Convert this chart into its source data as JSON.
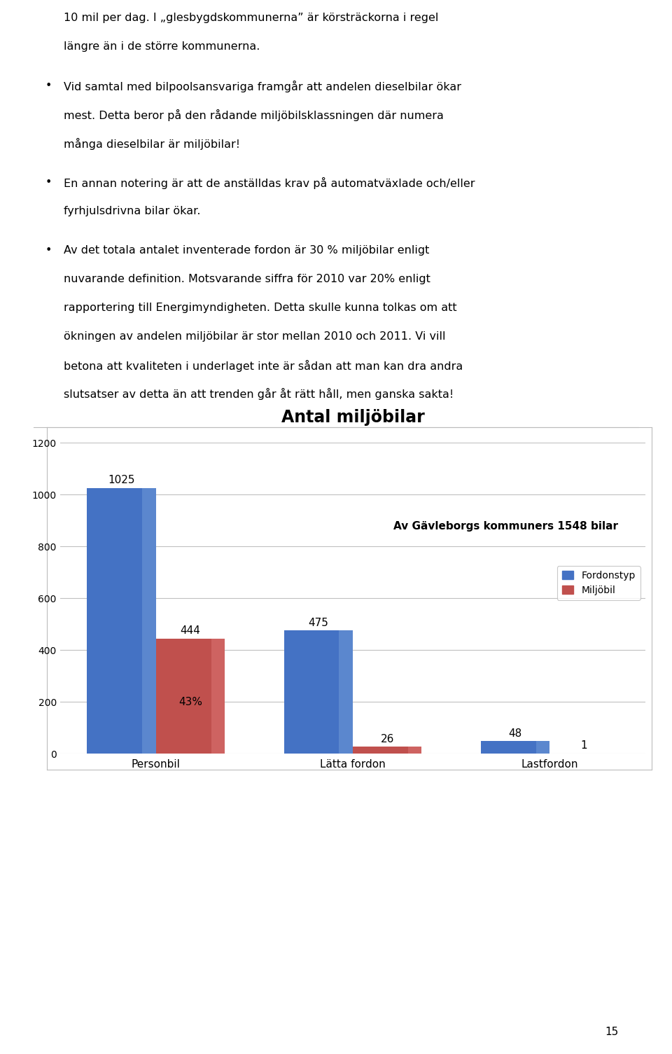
{
  "title": "Antal miljöbilar",
  "categories": [
    "Personbil",
    "Lätta fordon",
    "Lastfordon"
  ],
  "fordonstyp": [
    1025,
    475,
    48
  ],
  "miljobil": [
    444,
    26,
    1
  ],
  "bar_color_blue": "#4472C4",
  "bar_color_red": "#C0504D",
  "bar_width": 0.35,
  "ylim": [
    0,
    1200
  ],
  "yticks": [
    0,
    200,
    400,
    600,
    800,
    1000,
    1200
  ],
  "legend_labels": [
    "Fordonstyp",
    "Miljöbil"
  ],
  "annotation_text": "Av Gävleborgs kommuners 1548 bilar",
  "label_43pct": "43%",
  "text_paragraphs": [
    {
      "bullet": false,
      "lines": [
        "10 mil per dag. I „glesbygdskommunerna” är körsträckorna i regel",
        "längre än i de större kommunerna."
      ]
    },
    {
      "bullet": true,
      "lines": [
        "Vid samtal med bilpoolsansvariga framgår att andelen dieselbilar ökar",
        "mest. Detta beror på den rådande miljöbilsklassningen där numera",
        "många dieselbilar är miljöbilar!"
      ]
    },
    {
      "bullet": true,
      "lines": [
        "En annan notering är att de anställdas krav på automatväxlade och/eller",
        "fyrhjulsdrivna bilar ökar."
      ]
    },
    {
      "bullet": true,
      "lines": [
        "Av det totala antalet inventerade fordon är 30 % miljöbilar enligt",
        "nuvarande definition. Motsvarande siffra för 2010 var 20% enligt",
        "rapportering till Energimyndigheten. Detta skulle kunna tolkas om att",
        "ökningen av andelen miljöbilar är stor mellan 2010 och 2011. Vi vill",
        "betona att kvaliteten i underlaget inte är sådan att man kan dra andra",
        "slutsatser av detta än att trenden går åt rätt håll, men ganska sakta!"
      ]
    }
  ],
  "page_number": "15",
  "background_color": "#ffffff",
  "chart_bg": "#ffffff",
  "grid_color": "#c0c0c0"
}
